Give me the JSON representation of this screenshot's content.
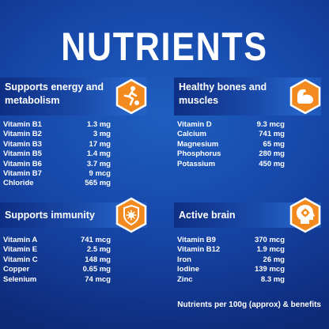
{
  "title": "NUTRIENTS",
  "sections": [
    {
      "title": "Supports energy and metabolism",
      "icon": "football-player-icon",
      "rows": [
        {
          "label": "Vitamin B1",
          "value": "1.3 mg"
        },
        {
          "label": "Vitamin B2",
          "value": "3 mg"
        },
        {
          "label": "Vitamin B3",
          "value": "17 mg"
        },
        {
          "label": "Vitamin B5",
          "value": "1.4 mg"
        },
        {
          "label": "Vitamin B6",
          "value": "3.7 mg"
        },
        {
          "label": "Vitamin B7",
          "value": "9 mcg"
        },
        {
          "label": "Chloride",
          "value": "565 mg"
        }
      ]
    },
    {
      "title": "Healthy bones and muscles",
      "icon": "flexed-arm-icon",
      "rows": [
        {
          "label": "Vitamin D",
          "value": "9.3 mcg"
        },
        {
          "label": "Calcium",
          "value": "741 mg"
        },
        {
          "label": "Magnesium",
          "value": "65 mg"
        },
        {
          "label": "Phosphorus",
          "value": "280 mg"
        },
        {
          "label": "Potassium",
          "value": "450 mg"
        }
      ]
    },
    {
      "title": "Supports immunity",
      "icon": "shield-virus-icon",
      "rows": [
        {
          "label": "Vitamin A",
          "value": "741 mcg"
        },
        {
          "label": "Vitamin E",
          "value": "2.5 mg"
        },
        {
          "label": "Vitamin C",
          "value": "148 mg"
        },
        {
          "label": "Copper",
          "value": "0.65 mg"
        },
        {
          "label": "Selenium",
          "value": "74 mcg"
        }
      ]
    },
    {
      "title": "Active brain",
      "icon": "head-gear-icon",
      "rows": [
        {
          "label": "Vitamin B9",
          "value": "370 mcg"
        },
        {
          "label": "Vitamin B12",
          "value": "1.9 mcg"
        },
        {
          "label": "Iron",
          "value": "26 mg"
        },
        {
          "label": "Iodine",
          "value": "139 mcg"
        },
        {
          "label": "Zinc",
          "value": "8.3 mg"
        }
      ]
    }
  ],
  "footer": "Nutrients per 100g (approx) & benefits",
  "colors": {
    "background": "#1646a8",
    "badge_orange": "#f38a1f",
    "badge_border": "#ffffff"
  }
}
